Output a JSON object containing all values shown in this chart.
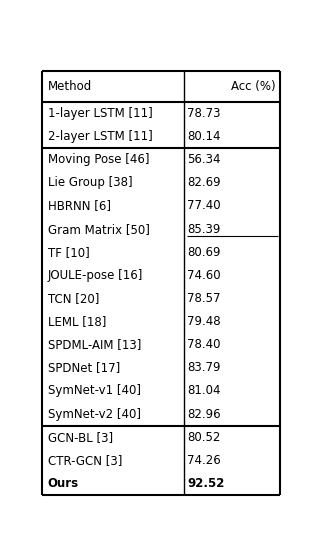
{
  "title_cols": [
    "Method",
    "Acc (%)"
  ],
  "groups": [
    {
      "rows": [
        [
          "1-layer LSTM [11]",
          "78.73",
          false,
          false
        ],
        [
          "2-layer LSTM [11]",
          "80.14",
          false,
          false
        ]
      ]
    },
    {
      "rows": [
        [
          "Moving Pose [46]",
          "56.34",
          false,
          false
        ],
        [
          "Lie Group [38]",
          "82.69",
          false,
          false
        ],
        [
          "HBRNN [6]",
          "77.40",
          false,
          false
        ],
        [
          "Gram Matrix [50]",
          "85.39",
          false,
          true
        ],
        [
          "TF [10]",
          "80.69",
          false,
          false
        ],
        [
          "JOULE-pose [16]",
          "74.60",
          false,
          false
        ],
        [
          "TCN [20]",
          "78.57",
          false,
          false
        ],
        [
          "LEML [18]",
          "79.48",
          false,
          false
        ],
        [
          "SPDML-AIM [13]",
          "78.40",
          false,
          false
        ],
        [
          "SPDNet [17]",
          "83.79",
          false,
          false
        ],
        [
          "SymNet-v1 [40]",
          "81.04",
          false,
          false
        ],
        [
          "SymNet-v2 [40]",
          "82.96",
          false,
          false
        ]
      ]
    },
    {
      "rows": [
        [
          "GCN-BL [3]",
          "80.52",
          false,
          false
        ],
        [
          "CTR-GCN [3]",
          "74.26",
          false,
          false
        ],
        [
          "Ours",
          "92.52",
          true,
          false
        ]
      ]
    }
  ],
  "col_split": 0.595,
  "font_size": 8.5,
  "bg_color": "#ffffff",
  "border_color": "#000000",
  "text_color": "#000000",
  "lw_outer": 1.5,
  "lw_inner": 1.0,
  "lw_group": 1.5
}
